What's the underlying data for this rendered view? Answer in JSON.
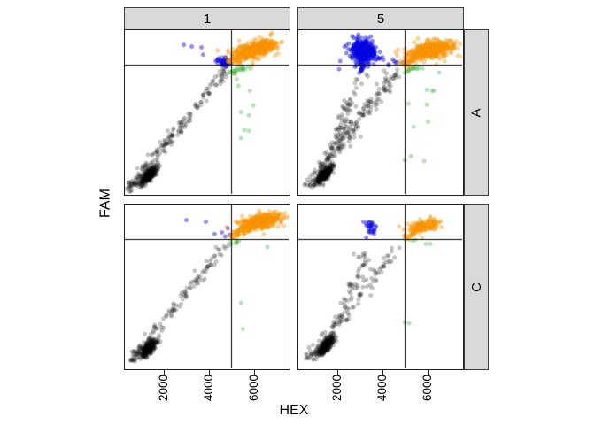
{
  "ui": {
    "background": "#ffffff",
    "strip_bg": "#d9d9d9",
    "strip_border": "#3f3f3f",
    "panel_border": "#1f1f1f",
    "threshold_line_color": "#000000"
  },
  "chart_data": {
    "type": "scatter",
    "xlabel": "HEX",
    "ylabel": "FAM",
    "col_facets": [
      "1",
      "5"
    ],
    "row_facets": [
      "A",
      "C"
    ],
    "x_ticks": [
      2000,
      4000,
      6000
    ],
    "x_tick_labels": [
      "2000",
      "4000",
      "6000"
    ],
    "xlim": [
      275,
      7570
    ],
    "ylim": [
      0,
      1
    ],
    "y_tick_labels_shown": false,
    "grid": false,
    "legend": "none",
    "threshold_x": 5000,
    "threshold_y_frac": 0.79,
    "point_colors": {
      "black": "#000000",
      "blue": "#1010EE",
      "green": "#3CBE3C",
      "orange": "#FF9E00"
    },
    "panels": [
      {
        "col": "1",
        "row": "A",
        "clusters": [
          {
            "type": "band",
            "color": "black",
            "x1": 500,
            "y1": 0.035,
            "x2": 4880,
            "y2": 0.775,
            "jx": 130,
            "jy": 0.013,
            "n": 180,
            "bias": 1.35
          },
          {
            "type": "gauss",
            "color": "black",
            "cx": 1350,
            "cy": 0.115,
            "sx": 190,
            "sy": 0.018,
            "tilt": 0.02,
            "n": 260
          },
          {
            "type": "band",
            "color": "green",
            "x1": 5000,
            "y1": 0.745,
            "x2": 5850,
            "y2": 0.775,
            "jx": 100,
            "jy": 0.008,
            "n": 18
          },
          {
            "type": "points",
            "color": "green",
            "pts": [
              [
                5254,
                0.7
              ],
              [
                5842,
                0.63
              ],
              [
                5332,
                0.66
              ],
              [
                5998,
                0.54
              ],
              [
                5450,
                0.5
              ],
              [
                5802,
                0.48
              ],
              [
                5606,
                0.39
              ],
              [
                5802,
                0.385
              ],
              [
                5450,
                0.34
              ],
              [
                5254,
                0.77
              ],
              [
                5528,
                0.755
              ]
            ]
          },
          {
            "type": "points",
            "color": "blue",
            "pts": [
              [
                2902,
                0.91
              ],
              [
                3254,
                0.9
              ],
              [
                3686,
                0.895
              ],
              [
                3764,
                0.85
              ]
            ]
          },
          {
            "type": "gauss",
            "color": "blue",
            "cx": 4730,
            "cy": 0.805,
            "sx": 140,
            "sy": 0.016,
            "n": 45
          },
          {
            "type": "band",
            "color": "blue",
            "x1": 4350,
            "y1": 0.825,
            "x2": 4800,
            "y2": 0.8,
            "jx": 60,
            "jy": 0.008,
            "n": 10
          },
          {
            "type": "gauss",
            "color": "orange",
            "cx": 6150,
            "cy": 0.885,
            "sx": 430,
            "sy": 0.02,
            "tilt": 0.014,
            "n": 400
          },
          {
            "type": "gauss",
            "color": "orange",
            "cx": 6150,
            "cy": 0.885,
            "sx": 640,
            "sy": 0.032,
            "tilt": 0.014,
            "n": 70
          },
          {
            "type": "band",
            "color": "orange",
            "x1": 5000,
            "y1": 0.8,
            "x2": 5780,
            "y2": 0.858,
            "jx": 110,
            "jy": 0.011,
            "n": 55
          }
        ]
      },
      {
        "col": "5",
        "row": "A",
        "clusters": [
          {
            "type": "band",
            "color": "black",
            "x1": 600,
            "y1": 0.045,
            "x2": 4840,
            "y2": 0.765,
            "jx": 150,
            "jy": 0.013,
            "n": 120,
            "bias": 1.3
          },
          {
            "type": "band",
            "color": "black",
            "x1": 1450,
            "y1": 0.13,
            "x2": 3060,
            "y2": 0.735,
            "jx": 150,
            "jy": 0.013,
            "n": 95,
            "bias": 1.2
          },
          {
            "type": "band",
            "color": "black",
            "x1": 2100,
            "y1": 0.28,
            "x2": 4400,
            "y2": 0.715,
            "jx": 260,
            "jy": 0.02,
            "n": 45,
            "bias": 1.1
          },
          {
            "type": "gauss",
            "color": "black",
            "cx": 1400,
            "cy": 0.115,
            "sx": 185,
            "sy": 0.018,
            "tilt": 0.02,
            "n": 270
          },
          {
            "type": "band",
            "color": "green",
            "x1": 5000,
            "y1": 0.75,
            "x2": 5550,
            "y2": 0.775,
            "jx": 80,
            "jy": 0.008,
            "n": 12
          },
          {
            "type": "points",
            "color": "green",
            "pts": [
              [
                5410,
                0.775
              ],
              [
                5802,
                0.765
              ],
              [
                6547,
                0.74
              ],
              [
                5998,
                0.635
              ],
              [
                6234,
                0.63
              ],
              [
                6312,
                0.63
              ],
              [
                5175,
                0.55
              ],
              [
                5998,
                0.545
              ],
              [
                6050,
                0.44
              ],
              [
                5410,
                0.41
              ],
              [
                5292,
                0.23
              ],
              [
                5018,
                0.205
              ],
              [
                5880,
                0.2
              ]
            ]
          },
          {
            "type": "gauss",
            "color": "blue",
            "cx": 3160,
            "cy": 0.875,
            "sx": 230,
            "sy": 0.03,
            "n": 360
          },
          {
            "type": "gauss",
            "color": "blue",
            "cx": 3220,
            "cy": 0.868,
            "sx": 400,
            "sy": 0.046,
            "n": 70
          },
          {
            "type": "band",
            "color": "blue",
            "x1": 3040,
            "y1": 0.755,
            "x2": 3160,
            "y2": 0.82,
            "jx": 60,
            "jy": 0.01,
            "n": 22
          },
          {
            "type": "band",
            "color": "blue",
            "x1": 3560,
            "y1": 0.838,
            "x2": 4840,
            "y2": 0.798,
            "jx": 120,
            "jy": 0.01,
            "n": 14
          },
          {
            "type": "gauss",
            "color": "orange",
            "cx": 6160,
            "cy": 0.878,
            "sx": 470,
            "sy": 0.022,
            "tilt": 0.013,
            "n": 390
          },
          {
            "type": "gauss",
            "color": "orange",
            "cx": 6160,
            "cy": 0.878,
            "sx": 680,
            "sy": 0.034,
            "tilt": 0.013,
            "n": 65
          },
          {
            "type": "band",
            "color": "orange",
            "x1": 4990,
            "y1": 0.795,
            "x2": 5700,
            "y2": 0.85,
            "jx": 110,
            "jy": 0.011,
            "n": 45
          }
        ]
      },
      {
        "col": "1",
        "row": "C",
        "clusters": [
          {
            "type": "band",
            "color": "black",
            "x1": 600,
            "y1": 0.045,
            "x2": 4880,
            "y2": 0.78,
            "jx": 140,
            "jy": 0.013,
            "n": 135,
            "bias": 1.3
          },
          {
            "type": "gauss",
            "color": "black",
            "cx": 1330,
            "cy": 0.12,
            "sx": 185,
            "sy": 0.018,
            "tilt": 0.02,
            "n": 240
          },
          {
            "type": "band",
            "color": "green",
            "x1": 5000,
            "y1": 0.75,
            "x2": 5330,
            "y2": 0.775,
            "jx": 70,
            "jy": 0.008,
            "n": 7
          },
          {
            "type": "points",
            "color": "green",
            "pts": [
              [
                6626,
                0.74
              ],
              [
                5450,
                0.4
              ],
              [
                5528,
                0.24
              ]
            ]
          },
          {
            "type": "points",
            "color": "blue",
            "pts": [
              [
                3019,
                0.905
              ],
              [
                3882,
                0.895
              ],
              [
                4274,
                0.82
              ],
              [
                4862,
                0.855
              ],
              [
                4940,
                0.815
              ],
              [
                4744,
                0.805
              ],
              [
                4600,
                0.83
              ]
            ]
          },
          {
            "type": "gauss",
            "color": "orange",
            "cx": 6310,
            "cy": 0.898,
            "sx": 390,
            "sy": 0.019,
            "tilt": 0.012,
            "n": 390
          },
          {
            "type": "gauss",
            "color": "orange",
            "cx": 6310,
            "cy": 0.898,
            "sx": 580,
            "sy": 0.03,
            "tilt": 0.012,
            "n": 60
          },
          {
            "type": "band",
            "color": "orange",
            "x1": 4990,
            "y1": 0.8,
            "x2": 6000,
            "y2": 0.875,
            "jx": 110,
            "jy": 0.012,
            "n": 55
          }
        ]
      },
      {
        "col": "5",
        "row": "C",
        "clusters": [
          {
            "type": "band",
            "color": "black",
            "x1": 700,
            "y1": 0.055,
            "x2": 4800,
            "y2": 0.75,
            "jx": 150,
            "jy": 0.014,
            "n": 75,
            "bias": 1.3
          },
          {
            "type": "band",
            "color": "black",
            "x1": 1600,
            "y1": 0.17,
            "x2": 3380,
            "y2": 0.7,
            "jx": 150,
            "jy": 0.014,
            "n": 55,
            "bias": 1.2
          },
          {
            "type": "band",
            "color": "black",
            "x1": 2200,
            "y1": 0.3,
            "x2": 4300,
            "y2": 0.68,
            "jx": 240,
            "jy": 0.02,
            "n": 28,
            "bias": 1.1
          },
          {
            "type": "gauss",
            "color": "black",
            "cx": 1500,
            "cy": 0.135,
            "sx": 195,
            "sy": 0.02,
            "tilt": 0.02,
            "n": 240
          },
          {
            "type": "points",
            "color": "green",
            "pts": [
              [
                5018,
                0.79
              ],
              [
                5371,
                0.78
              ],
              [
                5488,
                0.785
              ],
              [
                5959,
                0.76
              ],
              [
                6155,
                0.76
              ],
              [
                5018,
                0.28
              ],
              [
                5214,
                0.275
              ]
            ]
          },
          {
            "type": "gauss",
            "color": "blue",
            "cx": 3480,
            "cy": 0.855,
            "sx": 135,
            "sy": 0.02,
            "n": 26
          },
          {
            "type": "points",
            "color": "blue",
            "pts": [
              [
                3300,
                0.8
              ],
              [
                3650,
                0.82
              ]
            ]
          },
          {
            "type": "gauss",
            "color": "orange",
            "cx": 5800,
            "cy": 0.862,
            "sx": 330,
            "sy": 0.02,
            "tilt": 0.012,
            "n": 115
          },
          {
            "type": "gauss",
            "color": "orange",
            "cx": 5800,
            "cy": 0.862,
            "sx": 480,
            "sy": 0.03,
            "tilt": 0.012,
            "n": 22
          },
          {
            "type": "band",
            "color": "orange",
            "x1": 5000,
            "y1": 0.795,
            "x2": 5450,
            "y2": 0.835,
            "jx": 80,
            "jy": 0.01,
            "n": 14
          }
        ]
      }
    ]
  }
}
